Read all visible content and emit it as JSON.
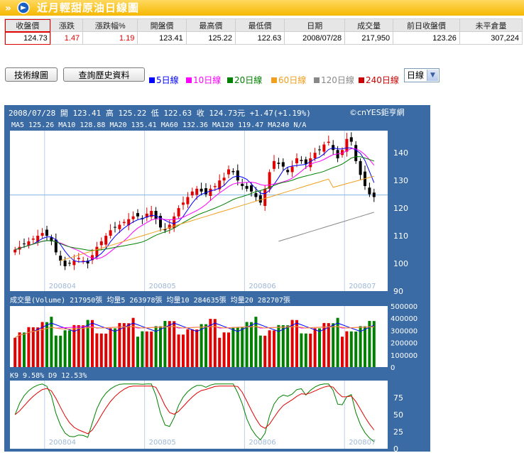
{
  "title": "近月輕甜原油日線圖",
  "quote_table": {
    "headers": [
      "收盤價",
      "漲跌",
      "漲跌幅%",
      "開盤價",
      "最高價",
      "最低價",
      "日期",
      "成交量",
      "前日收盤價",
      "未平倉量"
    ],
    "values": [
      "124.73",
      "1.47",
      "1.19",
      "123.41",
      "125.22",
      "122.63",
      "2008/07/28",
      "217,950",
      "123.26",
      "307,224"
    ]
  },
  "buttons": {
    "tech": "技術線圖",
    "history": "查詢歷史資料"
  },
  "ma_legend": [
    {
      "label": "5日線",
      "color": "#0000ff"
    },
    {
      "label": "10日線",
      "color": "#ff00ff"
    },
    {
      "label": "20日線",
      "color": "#008000"
    },
    {
      "label": "60日線",
      "color": "#f0a020"
    },
    {
      "label": "120日線",
      "color": "#888888"
    },
    {
      "label": "240日線",
      "color": "#cc0000"
    }
  ],
  "period_select": "日線",
  "chart_data": {
    "type": "candlestick",
    "info_line": "2008/07/28 開 123.41 高 125.22 低 122.63 收 124.73元 +1.47(+1.19%)",
    "brand": "©cnYES鉅亨網",
    "ma_line": "MA5 125.26   MA10 128.88   MA20 135.41   MA60 132.36   MA120 119.47   MA240 N/A",
    "price_ticks": [
      140,
      130,
      120,
      110,
      100,
      90
    ],
    "price_ylim": [
      90,
      148
    ],
    "month_labels": [
      "200804",
      "200805",
      "200806",
      "200807"
    ],
    "volume_header": "成交量(Volume) 217950張   均量5 263978張   均量10 284635張   均量20 282707張",
    "volume_ticks": [
      "500000",
      "400000",
      "300000",
      "200000",
      "100000",
      "0"
    ],
    "volume_ylim": [
      0,
      500000
    ],
    "kd_header": "K9 9.58%   D9 12.53%",
    "kd_ticks": [
      75,
      50,
      25,
      0
    ],
    "kd_ylim": [
      0,
      100
    ],
    "last_close": 124.73,
    "closes": [
      105,
      106,
      107,
      108,
      109,
      110,
      111,
      110,
      108,
      104,
      101,
      99,
      100,
      101,
      102,
      101,
      100,
      103,
      106,
      108,
      110,
      112,
      113,
      114,
      115,
      116,
      117,
      117,
      116,
      118,
      119,
      116,
      113,
      112,
      114,
      117,
      120,
      122,
      124,
      126,
      127,
      126,
      125,
      127,
      128,
      130,
      131,
      134,
      133,
      130,
      128,
      127,
      126,
      124,
      122,
      127,
      133,
      137,
      136,
      135,
      133,
      135,
      138,
      137,
      136,
      138,
      140,
      141,
      143,
      144,
      141,
      138,
      141,
      145,
      144,
      137,
      132,
      128,
      125,
      124
    ]
  }
}
